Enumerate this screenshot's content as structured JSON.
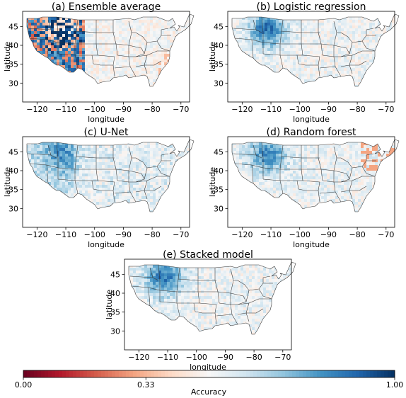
{
  "chart_data": [
    {
      "type": "heatmap",
      "title": "(a) Ensemble average",
      "xlabel": "longitude",
      "ylabel": "latitude",
      "xticks": [
        -120,
        -110,
        -100,
        -90,
        -80,
        -70
      ],
      "yticks": [
        30,
        35,
        40,
        45
      ],
      "xlim": [
        -125,
        -67
      ],
      "ylim": [
        25,
        49
      ],
      "pattern": "west_mixed_red_blue"
    },
    {
      "type": "heatmap",
      "title": "(b) Logistic regression",
      "xlabel": "longitude",
      "ylabel": "latitude",
      "xticks": [
        -120,
        -110,
        -100,
        -90,
        -80,
        -70
      ],
      "yticks": [
        30,
        35,
        40,
        45
      ],
      "xlim": [
        -125,
        -67
      ],
      "ylim": [
        25,
        49
      ],
      "pattern": "mostly_light_blue_with_northwest_darker"
    },
    {
      "type": "heatmap",
      "title": "(c) U-Net",
      "xlabel": "longitude",
      "ylabel": "latitude",
      "xticks": [
        -120,
        -110,
        -100,
        -90,
        -80,
        -70
      ],
      "yticks": [
        30,
        35,
        40,
        45
      ],
      "xlim": [
        -125,
        -67
      ],
      "ylim": [
        25,
        49
      ],
      "pattern": "light_blue_overall"
    },
    {
      "type": "heatmap",
      "title": "(d) Random forest",
      "xlabel": "longitude",
      "ylabel": "latitude",
      "xticks": [
        -120,
        -110,
        -100,
        -90,
        -80,
        -70
      ],
      "yticks": [
        30,
        35,
        40,
        45
      ],
      "xlim": [
        -125,
        -67
      ],
      "ylim": [
        25,
        49
      ],
      "pattern": "light_blue_with_northeast_reds"
    },
    {
      "type": "heatmap",
      "title": "(e) Stacked model",
      "xlabel": "longitude",
      "ylabel": "latitude",
      "xticks": [
        -120,
        -110,
        -100,
        -90,
        -80,
        -70
      ],
      "yticks": [
        30,
        35,
        40,
        45
      ],
      "xlim": [
        -125,
        -67
      ],
      "ylim": [
        25,
        49
      ],
      "pattern": "light_blue_with_northwest_darker"
    }
  ],
  "colorbar": {
    "label": "Accuracy",
    "ticks": [
      "0.00",
      "0.33",
      "1.00"
    ],
    "min": 0,
    "max": 1,
    "colors": [
      "#67001f",
      "#b2182b",
      "#d6604d",
      "#f4a582",
      "#fddbc7",
      "#f7f7f7",
      "#d1e5f0",
      "#92c5de",
      "#4393c3",
      "#2166ac",
      "#053061"
    ]
  }
}
